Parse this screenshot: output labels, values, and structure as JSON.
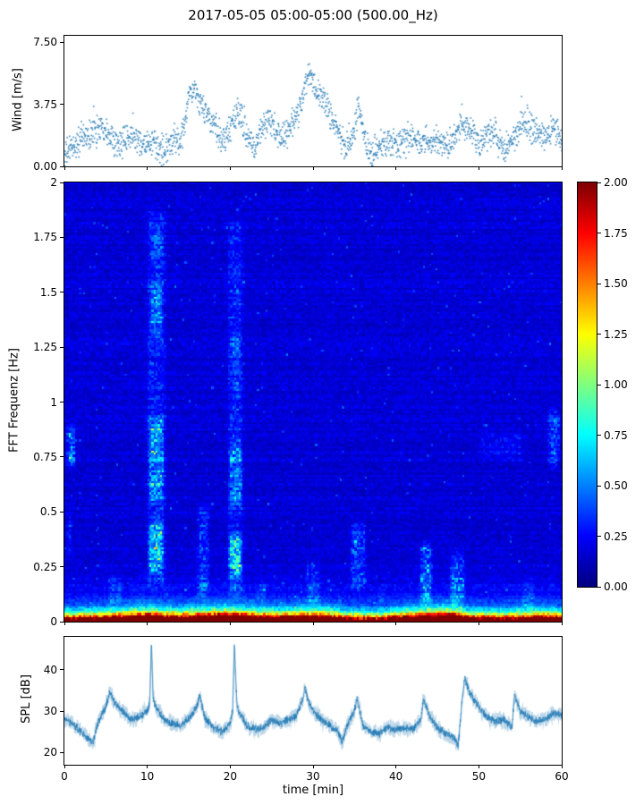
{
  "title": "2017-05-05 05:00-05:00 (500.00_Hz)",
  "xlabel": "time [min]",
  "colors": {
    "series": "#1f77b4",
    "axes": "#000000",
    "background": "#ffffff"
  },
  "xticks": {
    "values": [
      0,
      10,
      20,
      30,
      40,
      50,
      60
    ],
    "labels": [
      "0",
      "10",
      "20",
      "30",
      "40",
      "50",
      "60"
    ]
  },
  "chart_data": [
    {
      "type": "scatter",
      "name": "wind",
      "ylabel": "Wind [m/s]",
      "xlim": [
        0,
        60
      ],
      "ylim": [
        0,
        7.9
      ],
      "yticks": {
        "values": [
          0,
          3.75,
          7.5
        ],
        "labels": [
          "0.00",
          "3.75",
          "7.50"
        ]
      },
      "marker_color": "#1f77b4",
      "n_points": 1750,
      "noise_sd": 0.85,
      "envelope_x": [
        0,
        1,
        2,
        3,
        4,
        5,
        6,
        7,
        8,
        9,
        10,
        11,
        12,
        13,
        14,
        14.5,
        15,
        15.5,
        16,
        16.5,
        17,
        17.5,
        18,
        19,
        20,
        21,
        22,
        23,
        24,
        25,
        26,
        27,
        28,
        28.5,
        29,
        29.5,
        30,
        30.5,
        31,
        32,
        33,
        34,
        35,
        35.5,
        36,
        36.5,
        37,
        38,
        39,
        40,
        41,
        42,
        43,
        44,
        45,
        46,
        47,
        48,
        49,
        50,
        51,
        52,
        53,
        54,
        55,
        56,
        57,
        58,
        59,
        60
      ],
      "envelope_y": [
        0.6,
        1.2,
        1.6,
        1.9,
        2.2,
        2.4,
        1.6,
        1.3,
        1.8,
        1.5,
        1.3,
        1.1,
        1.0,
        1.4,
        1.6,
        2.5,
        4.2,
        4.5,
        4.3,
        3.8,
        3.2,
        2.8,
        2.4,
        1.6,
        2.3,
        3.3,
        2.0,
        1.3,
        2.4,
        2.7,
        1.6,
        2.1,
        3.0,
        3.8,
        4.8,
        5.8,
        5.2,
        4.6,
        4.2,
        3.4,
        2.0,
        1.1,
        2.2,
        3.6,
        2.0,
        1.3,
        0.7,
        1.1,
        1.5,
        1.3,
        1.5,
        1.8,
        1.3,
        1.6,
        1.5,
        1.4,
        1.5,
        2.7,
        2.1,
        1.3,
        1.6,
        2.0,
        1.1,
        1.5,
        2.3,
        2.7,
        2.1,
        1.6,
        2.4,
        1.8
      ]
    },
    {
      "type": "heatmap",
      "name": "spectrogram",
      "ylabel": "FFT Frequenz [Hz]",
      "xlim": [
        0,
        60
      ],
      "ylim": [
        0,
        2
      ],
      "yticks": {
        "values": [
          0,
          0.25,
          0.5,
          0.75,
          1,
          1.25,
          1.5,
          1.75,
          2
        ],
        "labels": [
          "0",
          "0.25",
          "0.5",
          "0.75",
          "1",
          "1.25",
          "1.5",
          "1.75",
          "2"
        ]
      },
      "colormap": "jet",
      "clim": [
        0,
        2
      ],
      "grid": {
        "cols": 240,
        "rows": 200
      },
      "background_level": 0.07,
      "low_freq_profile": {
        "amp1": 2.8,
        "scale1": 0.022,
        "amp2": 0.7,
        "scale2": 0.06
      },
      "low_freq_time_x": [
        0,
        4,
        8,
        10,
        14,
        16,
        20,
        24,
        28,
        31,
        34,
        38,
        42,
        44,
        47,
        49,
        53,
        57,
        60
      ],
      "low_freq_time_y": [
        0.8,
        0.9,
        1.1,
        1.3,
        1.0,
        1.2,
        1.35,
        1.0,
        1.1,
        1.2,
        0.8,
        0.7,
        1.1,
        1.25,
        1.3,
        0.9,
        0.8,
        1.0,
        0.9
      ],
      "bands": [
        [
          9.7,
          12.3,
          0.12,
          1.9,
          0.15
        ],
        [
          9.9,
          12.1,
          0.2,
          0.48,
          0.5
        ],
        [
          9.9,
          12.1,
          0.52,
          0.95,
          0.38
        ],
        [
          10.2,
          11.9,
          1.28,
          1.56,
          0.32
        ],
        [
          10.2,
          11.9,
          1.6,
          1.82,
          0.18
        ],
        [
          19.5,
          21.7,
          0.08,
          1.85,
          0.15
        ],
        [
          19.7,
          21.6,
          0.18,
          0.42,
          0.55
        ],
        [
          19.7,
          21.6,
          0.5,
          0.85,
          0.3
        ],
        [
          19.9,
          21.4,
          1.0,
          1.35,
          0.13
        ],
        [
          15.8,
          17.6,
          0.08,
          0.55,
          0.2
        ],
        [
          0.0,
          1.3,
          0.68,
          0.92,
          0.42
        ],
        [
          0.0,
          1.0,
          0.28,
          0.5,
          0.18
        ],
        [
          34.3,
          36.6,
          0.12,
          0.48,
          0.2
        ],
        [
          29.0,
          31.0,
          0.05,
          0.3,
          0.16
        ],
        [
          42.8,
          44.6,
          0.05,
          0.38,
          0.32
        ],
        [
          46.4,
          48.6,
          0.04,
          0.32,
          0.28
        ],
        [
          50.0,
          55.5,
          0.72,
          0.88,
          0.12
        ],
        [
          58.3,
          60.0,
          0.68,
          0.98,
          0.28
        ],
        [
          5.0,
          7.0,
          0.04,
          0.22,
          0.14
        ],
        [
          23.0,
          24.5,
          0.04,
          0.2,
          0.12
        ],
        [
          37.5,
          39.0,
          0.04,
          0.18,
          0.1
        ],
        [
          55.0,
          57.0,
          0.04,
          0.2,
          0.12
        ]
      ],
      "colorbar": {
        "ticks": {
          "values": [
            0,
            0.25,
            0.5,
            0.75,
            1,
            1.25,
            1.5,
            1.75,
            2
          ],
          "labels": [
            "0.00",
            "0.25",
            "0.50",
            "0.75",
            "1.00",
            "1.25",
            "1.50",
            "1.75",
            "2.00"
          ]
        }
      }
    },
    {
      "type": "line",
      "name": "spl",
      "ylabel": "SPL [dB]",
      "xlim": [
        0,
        60
      ],
      "ylim": [
        17,
        48
      ],
      "yticks": {
        "values": [
          20,
          30,
          40
        ],
        "labels": [
          "20",
          "30",
          "40"
        ]
      },
      "line_color": "#1f77b4",
      "n_points": 2600,
      "noise_sd": 1.3,
      "envelope_x": [
        0,
        1,
        2,
        3,
        3.5,
        4,
        5,
        5.5,
        6,
        7,
        8,
        9,
        10,
        10.3,
        10.5,
        10.7,
        11,
        12,
        13,
        14,
        15,
        16,
        16.3,
        17,
        18,
        19,
        20,
        20.3,
        20.5,
        20.8,
        21,
        22,
        23,
        24,
        25,
        26,
        27,
        28,
        28.8,
        29,
        29.3,
        30,
        31,
        32,
        33,
        33.5,
        34,
        35,
        35.3,
        36,
        37,
        38,
        39,
        40,
        41,
        42,
        43,
        43.3,
        44,
        45,
        46,
        47,
        47.5,
        48,
        48.3,
        49,
        50,
        51,
        52,
        53,
        54,
        54.3,
        55,
        56,
        57,
        58,
        59,
        60
      ],
      "envelope_y": [
        28,
        27,
        25,
        23,
        22.5,
        27,
        31,
        35,
        32,
        30,
        28,
        28.5,
        30,
        32,
        47,
        33,
        31,
        28,
        27,
        26.5,
        28,
        31,
        34,
        28,
        26,
        25,
        27,
        30,
        46,
        32,
        30,
        26.5,
        25.5,
        26,
        28,
        27,
        28,
        29,
        33,
        36,
        33,
        30,
        28,
        26.5,
        25,
        22.5,
        26,
        30,
        33,
        26.5,
        25,
        24.5,
        26,
        25.5,
        26,
        25.5,
        28,
        33,
        29,
        26,
        24.5,
        23.5,
        21.5,
        33,
        38,
        34,
        31,
        28.5,
        27.5,
        28,
        26,
        34,
        30,
        28.5,
        27.5,
        28,
        29.5,
        29
      ]
    }
  ]
}
